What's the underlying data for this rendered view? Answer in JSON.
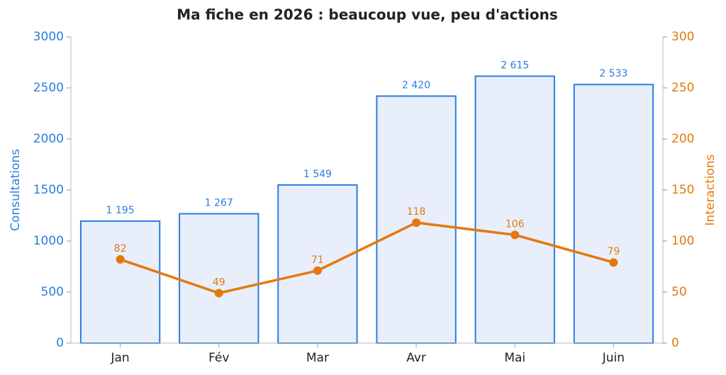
{
  "chart_data": {
    "type": "bar",
    "title": "Ma fiche en 2026 : beaucoup vue, peu d'actions",
    "ylabel": "Consultations",
    "y2label": "Interactions",
    "categories": [
      "Jan",
      "Fév",
      "Mar",
      "Avr",
      "Mai",
      "Juin"
    ],
    "series": [
      {
        "type": "bar",
        "color": "#2b7de0",
        "fill": "#e8effb",
        "values": [
          1195,
          1267,
          1549,
          2420,
          2615,
          2533
        ],
        "value_labels": [
          "1 195",
          "1 267",
          "1 549",
          "2 420",
          "2 615",
          "2 533"
        ]
      },
      {
        "type": "line",
        "axis": "y2",
        "color": "#e5780d",
        "values": [
          82,
          49,
          71,
          118,
          106,
          79
        ]
      }
    ],
    "ylim": [
      0,
      3000
    ],
    "yticks": [
      0,
      500,
      1000,
      1500,
      2000,
      2500,
      3000
    ],
    "y2lim": [
      0,
      300
    ],
    "y2ticks": [
      0,
      50,
      100,
      150,
      200,
      250,
      300
    ],
    "grid": false
  }
}
